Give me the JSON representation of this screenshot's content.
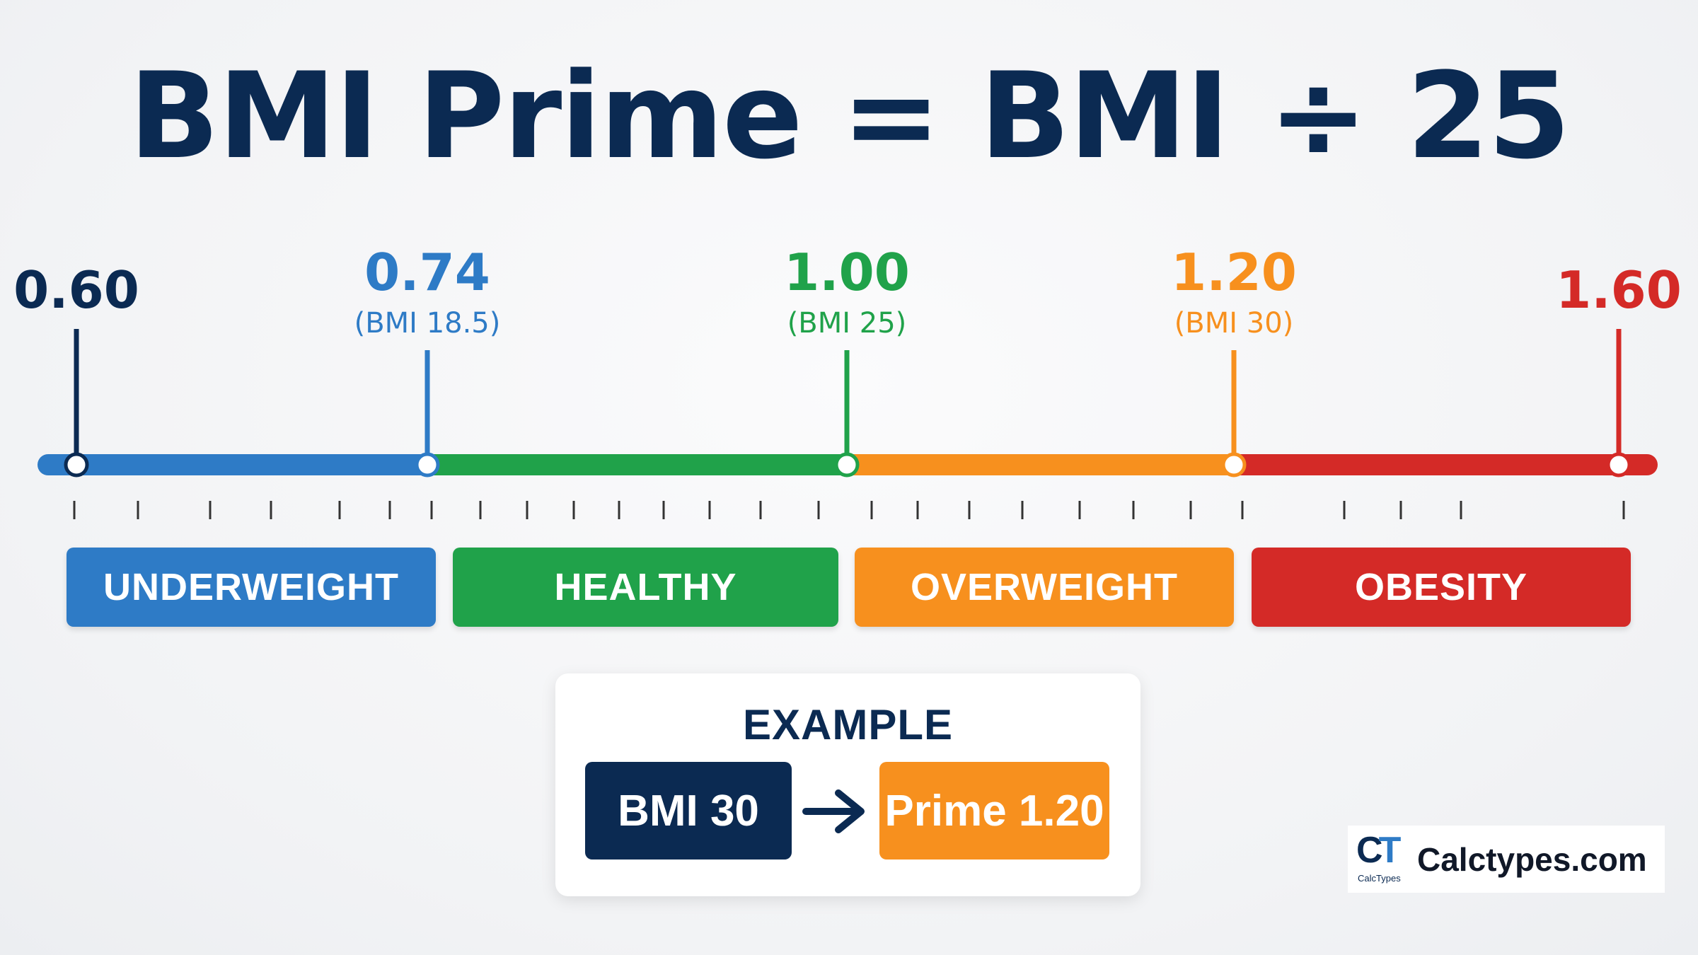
{
  "title": "BMI Prime = BMI ÷ 25",
  "colors": {
    "navy": "#0b2a52",
    "blue": "#2e7bc6",
    "green": "#20a24a",
    "orange": "#f7901e",
    "red": "#d42a27"
  },
  "chart_data": {
    "type": "number-line",
    "min": 0.6,
    "max": 1.6,
    "markers": [
      {
        "value": "0.60",
        "sub": "",
        "color": "#0b2a52",
        "pos": 0.6
      },
      {
        "value": "0.74",
        "sub": "(BMI 18.5)",
        "color": "#2e7bc6",
        "pos": 0.74
      },
      {
        "value": "1.00",
        "sub": "(BMI 25)",
        "color": "#20a24a",
        "pos": 1.0
      },
      {
        "value": "1.20",
        "sub": "(BMI 30)",
        "color": "#f7901e",
        "pos": 1.2
      },
      {
        "value": "1.60",
        "sub": "",
        "color": "#d42a27",
        "pos": 1.6
      }
    ],
    "segments": [
      {
        "from": 0.6,
        "to": 0.74,
        "color": "#2e7bc6"
      },
      {
        "from": 0.74,
        "to": 1.0,
        "color": "#20a24a"
      },
      {
        "from": 1.0,
        "to": 1.2,
        "color": "#f7901e"
      },
      {
        "from": 1.2,
        "to": 1.6,
        "color": "#d42a27"
      }
    ],
    "categories": [
      {
        "label": "UNDERWEIGHT",
        "color": "#2e7bc6"
      },
      {
        "label": "HEALTHY",
        "color": "#20a24a"
      },
      {
        "label": "OVERWEIGHT",
        "color": "#f7901e"
      },
      {
        "label": "OBESITY",
        "color": "#d42a27"
      }
    ]
  },
  "example": {
    "title": "EXAMPLE",
    "bmi": "BMI 30",
    "prime": "Prime 1.20",
    "arrow_icon": "arrow-right-icon"
  },
  "brand": {
    "logo_letters": "CT",
    "logo_small": "CalcTypes",
    "name": "Calctypes.com"
  }
}
